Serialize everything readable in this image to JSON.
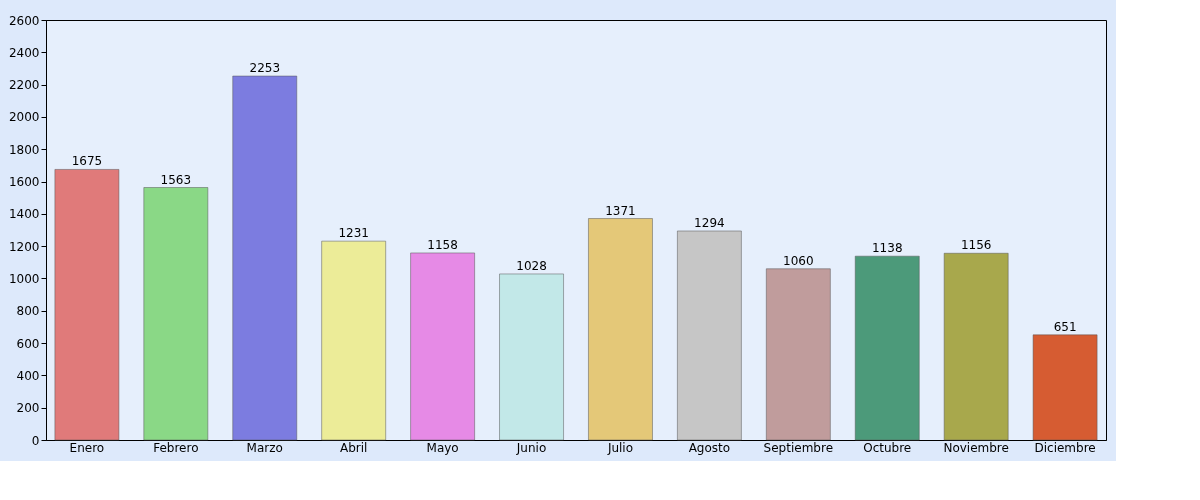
{
  "chart_data": {
    "type": "bar",
    "categories": [
      "Enero",
      "Febrero",
      "Marzo",
      "Abril",
      "Mayo",
      "Junio",
      "Julio",
      "Agosto",
      "Septiembre",
      "Octubre",
      "Noviembre",
      "Diciembre"
    ],
    "values": [
      1675,
      1563,
      2253,
      1231,
      1158,
      1028,
      1371,
      1294,
      1060,
      1138,
      1156,
      651
    ],
    "colors": [
      "#e07a7a",
      "#8ad886",
      "#7c7ce0",
      "#ecec98",
      "#e68ae6",
      "#c2e8e8",
      "#e4c878",
      "#c6c6c6",
      "#c09c9c",
      "#4c9a7a",
      "#a8a84c",
      "#d65c32"
    ],
    "ylim": [
      0,
      2600
    ],
    "yticks": [
      0,
      200,
      400,
      600,
      800,
      1000,
      1200,
      1400,
      1600,
      1800,
      2000,
      2200,
      2400,
      2600
    ],
    "data_labels": true,
    "grid": false,
    "legend": false
  }
}
